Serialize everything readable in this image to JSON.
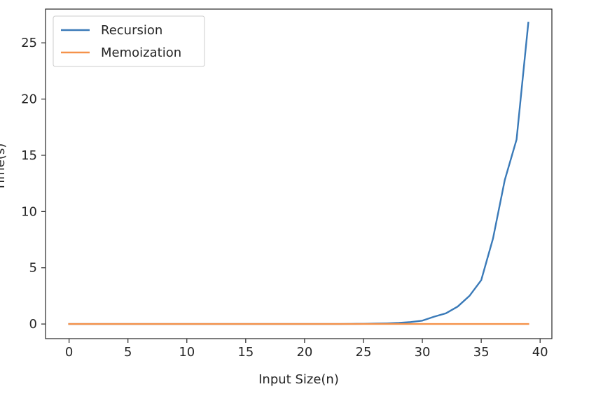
{
  "chart_data": {
    "type": "line",
    "title": "",
    "xlabel": "Input Size(n)",
    "ylabel": "Time(s)",
    "xlim": [
      -2,
      41
    ],
    "ylim": [
      -1.3,
      28
    ],
    "x_ticks": [
      0,
      5,
      10,
      15,
      20,
      25,
      30,
      35,
      40
    ],
    "y_ticks": [
      0,
      5,
      10,
      15,
      20,
      25
    ],
    "grid": false,
    "legend_position": "upper-left",
    "x": [
      0,
      1,
      2,
      3,
      4,
      5,
      6,
      7,
      8,
      9,
      10,
      11,
      12,
      13,
      14,
      15,
      16,
      17,
      18,
      19,
      20,
      21,
      22,
      23,
      24,
      25,
      26,
      27,
      28,
      29,
      30,
      31,
      32,
      33,
      34,
      35,
      36,
      37,
      38,
      39
    ],
    "series": [
      {
        "name": "Recursion",
        "color": "#3a7ab8",
        "values": [
          0,
          0,
          0,
          0,
          0,
          0,
          0,
          0,
          0,
          0,
          0,
          0,
          0,
          0,
          0,
          0,
          0,
          0,
          0,
          0,
          0,
          0,
          0,
          0,
          0.01,
          0.02,
          0.04,
          0.06,
          0.1,
          0.17,
          0.3,
          0.65,
          0.95,
          1.55,
          2.5,
          3.9,
          7.6,
          12.8,
          16.4,
          26.8
        ]
      },
      {
        "name": "Memoization",
        "color": "#f5924a",
        "values": [
          0,
          0,
          0,
          0,
          0,
          0,
          0,
          0,
          0,
          0,
          0,
          0,
          0,
          0,
          0,
          0,
          0,
          0,
          0,
          0,
          0,
          0,
          0,
          0,
          0,
          0,
          0,
          0,
          0,
          0,
          0,
          0,
          0,
          0,
          0,
          0,
          0,
          0,
          0,
          0
        ]
      }
    ]
  }
}
